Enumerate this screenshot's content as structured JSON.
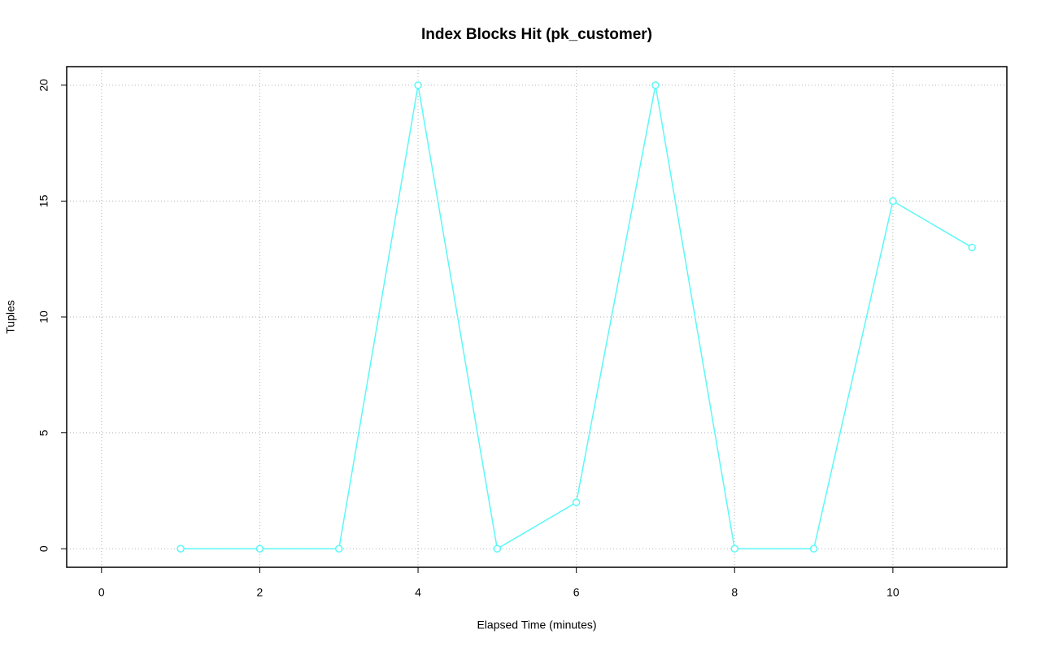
{
  "chart_data": {
    "type": "line",
    "title": "Index Blocks Hit (pk_customer)",
    "x_label": "Elapsed Time (minutes)",
    "y_label": "Tuples",
    "x": [
      1,
      2,
      3,
      4,
      5,
      6,
      7,
      8,
      9,
      10,
      11
    ],
    "series": [
      {
        "color": "#5cf8f8",
        "values": [
          0,
          0,
          0,
          20,
          0,
          2,
          20,
          0,
          0,
          15,
          13
        ]
      }
    ],
    "xlim": [
      -0.44,
      11.44
    ],
    "xticks": [
      0,
      2,
      4,
      6,
      8,
      10
    ],
    "ylim": [
      -0.8,
      20.8
    ],
    "yticks": [
      0,
      5,
      10,
      15,
      20
    ],
    "grid": true
  }
}
